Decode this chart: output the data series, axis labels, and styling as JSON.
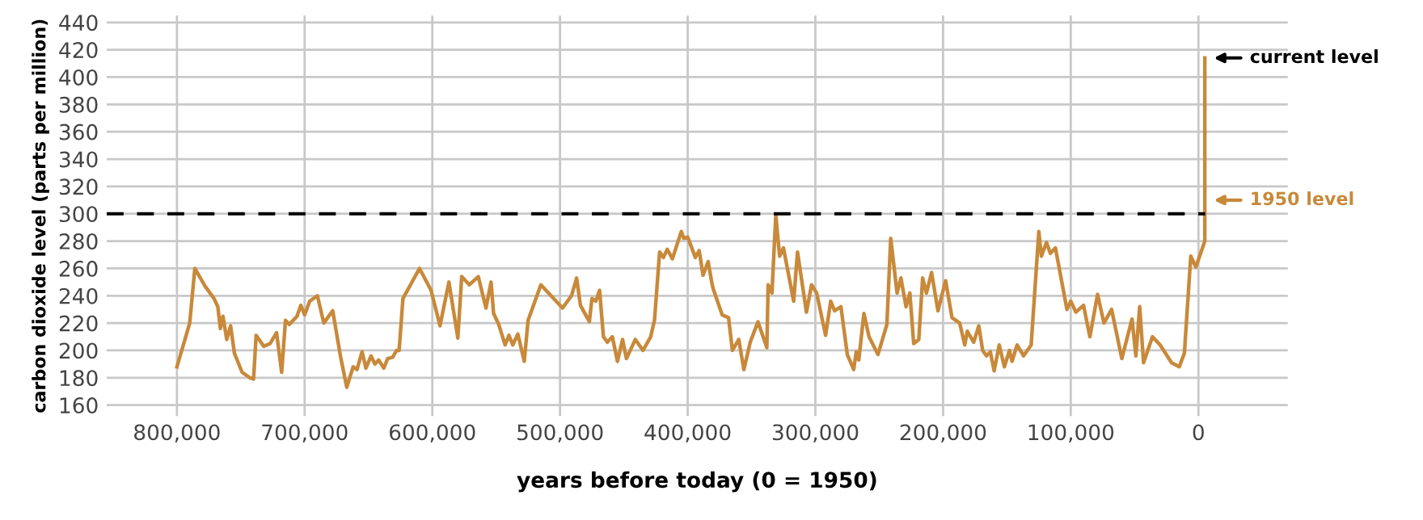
{
  "chart_data": {
    "type": "line",
    "xlabel": "years before today (0 = 1950)",
    "ylabel": "carbon dioxide level (parts per million)",
    "x": [
      800000,
      790000,
      786000,
      778000,
      771000,
      768000,
      766000,
      764000,
      761000,
      758000,
      755000,
      749000,
      743000,
      740000,
      738000,
      732000,
      727000,
      722000,
      718000,
      715000,
      712000,
      706000,
      703000,
      700000,
      696000,
      690000,
      685000,
      678000,
      672000,
      667000,
      662000,
      659000,
      655000,
      652000,
      648000,
      645000,
      642000,
      638000,
      635000,
      631000,
      628000,
      626000,
      623000,
      610000,
      601000,
      594000,
      587000,
      580000,
      577000,
      571000,
      564000,
      558000,
      554000,
      552000,
      548000,
      543000,
      540000,
      537000,
      533000,
      528000,
      525000,
      515000,
      498000,
      491000,
      487000,
      484000,
      477000,
      475000,
      472000,
      469000,
      466000,
      463000,
      459000,
      455000,
      451000,
      448000,
      441000,
      435000,
      429000,
      426000,
      422000,
      419000,
      416000,
      412000,
      405000,
      403000,
      400000,
      394000,
      391000,
      388000,
      384000,
      381000,
      380000,
      373000,
      368000,
      365000,
      360000,
      356000,
      351000,
      345000,
      338000,
      337000,
      334000,
      331000,
      328000,
      325000,
      317000,
      314000,
      307000,
      303000,
      299000,
      292000,
      288000,
      285000,
      280000,
      275000,
      270000,
      268000,
      266000,
      262000,
      258000,
      251000,
      244000,
      241000,
      236000,
      233000,
      229000,
      226000,
      223000,
      219000,
      216000,
      213000,
      209000,
      204000,
      198000,
      193000,
      187000,
      183000,
      181000,
      176000,
      172000,
      169000,
      166000,
      163000,
      160000,
      156000,
      152000,
      148000,
      146000,
      142000,
      137000,
      131000,
      125000,
      123000,
      119000,
      116000,
      112000,
      103000,
      100000,
      96000,
      90000,
      85000,
      79000,
      74000,
      68000,
      60000,
      52000,
      49000,
      46000,
      43000,
      36000,
      30000,
      21000,
      15000,
      11000,
      6000,
      2000,
      -5000,
      -5000
    ],
    "series": [
      {
        "color": "#c8893a",
        "values": [
          188,
          220,
          260,
          247,
          238,
          232,
          216,
          225,
          208,
          218,
          198,
          184,
          180,
          179,
          211,
          203,
          205,
          213,
          184,
          222,
          219,
          225,
          233,
          226,
          236,
          240,
          220,
          229,
          196,
          173,
          188,
          186,
          199,
          187,
          196,
          190,
          193,
          187,
          194,
          195,
          200,
          200,
          238,
          260,
          244,
          218,
          250,
          209,
          254,
          248,
          254,
          231,
          250,
          227,
          219,
          204,
          211,
          204,
          212,
          192,
          222,
          248,
          231,
          240,
          253,
          233,
          221,
          238,
          236,
          244,
          210,
          206,
          210,
          192,
          208,
          194,
          208,
          200,
          210,
          222,
          272,
          268,
          274,
          267,
          287,
          282,
          283,
          268,
          273,
          255,
          265,
          249,
          245,
          226,
          224,
          200,
          208,
          186,
          206,
          221,
          202,
          248,
          242,
          299,
          269,
          275,
          236,
          272,
          228,
          248,
          242,
          211,
          236,
          229,
          232,
          197,
          186,
          199,
          193,
          227,
          210,
          197,
          219,
          282,
          242,
          253,
          232,
          242,
          205,
          208,
          253,
          242,
          257,
          229,
          251,
          224,
          220,
          204,
          214,
          206,
          218,
          200,
          196,
          199,
          185,
          204,
          188,
          200,
          192,
          204,
          196,
          204,
          287,
          269,
          279,
          271,
          275,
          230,
          236,
          228,
          233,
          210,
          241,
          220,
          230,
          194,
          223,
          196,
          232,
          191,
          210,
          204,
          191,
          188,
          198,
          269,
          261,
          280,
          414
        ]
      }
    ],
    "xlim": [
      855000,
      -70000
    ],
    "ylim": [
      152,
      445
    ],
    "xticks": [
      {
        "value": 800000,
        "label": "800,000"
      },
      {
        "value": 700000,
        "label": "700,000"
      },
      {
        "value": 600000,
        "label": "600,000"
      },
      {
        "value": 500000,
        "label": "500,000"
      },
      {
        "value": 400000,
        "label": "400,000"
      },
      {
        "value": 300000,
        "label": "300,000"
      },
      {
        "value": 200000,
        "label": "200,000"
      },
      {
        "value": 100000,
        "label": "100,000"
      },
      0
    ],
    "yticks": [
      160,
      180,
      200,
      220,
      240,
      260,
      280,
      300,
      320,
      340,
      360,
      380,
      400,
      420,
      440
    ],
    "grid": true,
    "ref_lines": [
      {
        "axis": "y",
        "value": 300,
        "color": "#000000",
        "line_style": "dashed"
      }
    ],
    "annotations": [
      {
        "text": "current level",
        "x": -5000,
        "y": 414
      },
      {
        "text": "1950 level",
        "x": -5000,
        "y": 310
      }
    ]
  }
}
